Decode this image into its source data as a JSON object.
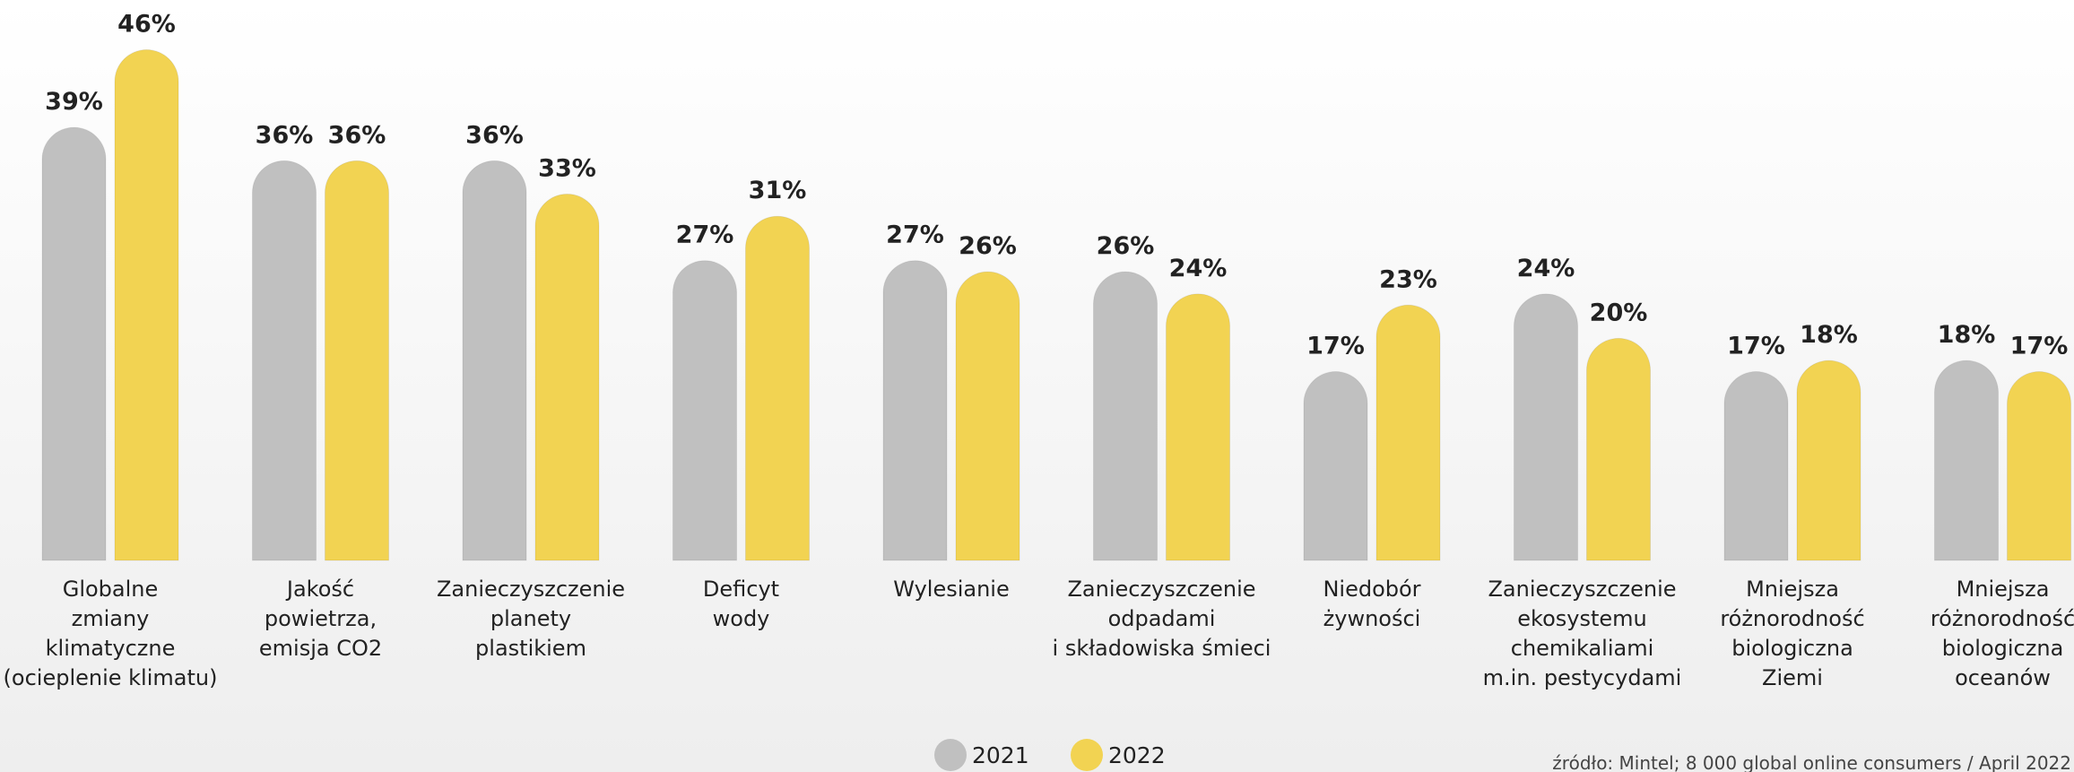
{
  "chart_data": {
    "type": "bar",
    "categories": [
      [
        "Globalne",
        "zmiany",
        "klimatyczne",
        "(ocieplenie klimatu)"
      ],
      [
        "Jakość",
        "powietrza,",
        "emisja CO2"
      ],
      [
        "Zanieczyszczenie",
        "planety",
        "plastikiem"
      ],
      [
        "Deficyt",
        "wody"
      ],
      [
        "Wylesianie"
      ],
      [
        "Zanieczyszczenie",
        "odpadami",
        "i składowiska śmieci"
      ],
      [
        "Niedobór",
        "żywności"
      ],
      [
        "Zanieczyszczenie",
        "ekosystemu",
        "chemikaliami",
        "m.in. pestycydami"
      ],
      [
        "Mniejsza",
        "różnorodność",
        "biologiczna",
        "Ziemi"
      ],
      [
        "Mniejsza",
        "różnorodność",
        "biologiczna",
        "oceanów"
      ]
    ],
    "series": [
      {
        "name": "2021",
        "color": "#c0c0c0",
        "values": [
          39,
          36,
          36,
          27,
          27,
          26,
          17,
          24,
          17,
          18
        ],
        "value_labels": [
          "39%",
          "36%",
          "36%",
          "27%",
          "27%",
          "26%",
          "17%",
          "24%",
          "17%",
          "18%"
        ]
      },
      {
        "name": "2022",
        "color": "#f2d352",
        "values": [
          46,
          36,
          33,
          31,
          26,
          24,
          23,
          20,
          18,
          17
        ],
        "value_labels": [
          "46%",
          "36%",
          "33%",
          "31%",
          "26%",
          "24%",
          "23%",
          "20%",
          "18%",
          "17%"
        ]
      }
    ],
    "source": "źródło: Mintel; 8 000 global online consumers / April 2022"
  }
}
